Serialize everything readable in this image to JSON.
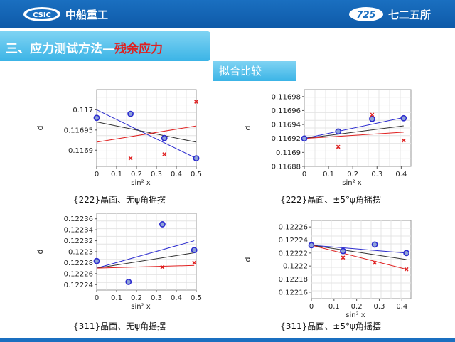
{
  "header": {
    "left_logo_text": "CSIC",
    "left_brand": "中船重工",
    "right_logo_text": "725",
    "right_brand": "七二五所"
  },
  "section": {
    "title_prefix": "三、应力测试方法—",
    "title_accent": "残余应力"
  },
  "compare_label": "拟合比较",
  "colors": {
    "header_blue": "#1a6fc0",
    "accent_red": "#e02020",
    "fit_blue": "#2c2ccf",
    "fit_red": "#e02020"
  },
  "chart_data": [
    {
      "type": "scatter",
      "caption": "{222}晶面、无ψ角摇摆",
      "xlabel": "sin² x",
      "ylabel": "d",
      "xlim": [
        0,
        0.5
      ],
      "ylim": [
        0.11686,
        0.11705
      ],
      "xticks": [
        0,
        0.1,
        0.2,
        0.3,
        0.4,
        0.5
      ],
      "yticks": [
        0.1169,
        0.11695,
        0.117
      ],
      "ytick_labels": [
        "0.1169",
        "0.11695",
        "0.117"
      ],
      "series": [
        {
          "marker": "circle",
          "color": "#2c2ccf",
          "points": [
            [
              0.0,
              0.11698
            ],
            [
              0.17,
              0.11699
            ],
            [
              0.34,
              0.11693
            ],
            [
              0.5,
              0.11688
            ]
          ]
        },
        {
          "marker": "x",
          "color": "#e02020",
          "points": [
            [
              0.17,
              0.11688
            ],
            [
              0.34,
              0.11689
            ],
            [
              0.5,
              0.11702
            ]
          ]
        }
      ],
      "lines": [
        {
          "color": "#2c2ccf",
          "from": [
            0.0,
            0.117
          ],
          "to": [
            0.5,
            0.11688
          ]
        },
        {
          "color": "#333333",
          "from": [
            0.0,
            0.11697
          ],
          "to": [
            0.5,
            0.11692
          ]
        },
        {
          "color": "#e02020",
          "from": [
            0.0,
            0.11692
          ],
          "to": [
            0.5,
            0.11696
          ]
        }
      ],
      "grid": true
    },
    {
      "type": "scatter",
      "caption": "{222}晶面、±5°ψ角摇摆",
      "xlabel": "sin² x",
      "ylabel": "d",
      "xlim": [
        0,
        0.44
      ],
      "ylim": [
        0.11688,
        0.11699
      ],
      "xticks": [
        0,
        0.1,
        0.2,
        0.3,
        0.4
      ],
      "yticks": [
        0.11688,
        0.1169,
        0.11692,
        0.11694,
        0.11696,
        0.11698
      ],
      "ytick_labels": [
        "0.11688",
        "0.1169",
        "0.11692",
        "0.11694",
        "0.11696",
        "0.11698"
      ],
      "series": [
        {
          "marker": "circle",
          "color": "#2c2ccf",
          "points": [
            [
              0.0,
              0.11692
            ],
            [
              0.14,
              0.11693
            ],
            [
              0.28,
              0.116948
            ],
            [
              0.41,
              0.116949
            ]
          ]
        },
        {
          "marker": "x",
          "color": "#e02020",
          "points": [
            [
              0.14,
              0.116908
            ],
            [
              0.28,
              0.116954
            ],
            [
              0.41,
              0.116917
            ]
          ]
        }
      ],
      "lines": [
        {
          "color": "#2c2ccf",
          "from": [
            0.0,
            0.11692
          ],
          "to": [
            0.41,
            0.11695
          ]
        },
        {
          "color": "#333333",
          "from": [
            0.0,
            0.11692
          ],
          "to": [
            0.41,
            0.116938
          ]
        },
        {
          "color": "#e02020",
          "from": [
            0.0,
            0.11692
          ],
          "to": [
            0.41,
            0.116929
          ]
        }
      ],
      "grid": true
    },
    {
      "type": "scatter",
      "caption": "{311}晶面、无ψ角摇摆",
      "xlabel": "sin² x",
      "ylabel": "d",
      "xlim": [
        0,
        0.5
      ],
      "ylim": [
        0.12223,
        0.12237
      ],
      "xticks": [
        0,
        0.1,
        0.2,
        0.3,
        0.4,
        0.5
      ],
      "yticks": [
        0.12224,
        0.12226,
        0.12228,
        0.1223,
        0.12232,
        0.12234,
        0.12236
      ],
      "ytick_labels": [
        "0.12224",
        "0.12226",
        "0.12228",
        "0.1223",
        "0.12232",
        "0.12234",
        "0.12236"
      ],
      "series": [
        {
          "marker": "circle",
          "color": "#2c2ccf",
          "points": [
            [
              0.0,
              0.122283
            ],
            [
              0.16,
              0.122245
            ],
            [
              0.33,
              0.12235
            ],
            [
              0.49,
              0.122303
            ]
          ]
        },
        {
          "marker": "x",
          "color": "#e02020",
          "points": [
            [
              0.33,
              0.122272
            ],
            [
              0.49,
              0.12228
            ]
          ]
        }
      ],
      "lines": [
        {
          "color": "#2c2ccf",
          "from": [
            0.0,
            0.12227
          ],
          "to": [
            0.49,
            0.12232
          ]
        },
        {
          "color": "#333333",
          "from": [
            0.0,
            0.12227
          ],
          "to": [
            0.49,
            0.122298
          ]
        },
        {
          "color": "#e02020",
          "from": [
            0.0,
            0.12227
          ],
          "to": [
            0.49,
            0.122275
          ]
        }
      ],
      "grid": true
    },
    {
      "type": "scatter",
      "caption": "{311}晶面、±5°ψ角摇摆",
      "xlabel": "sin² x",
      "ylabel": "d",
      "xlim": [
        0,
        0.44
      ],
      "ylim": [
        0.12215,
        0.12227
      ],
      "xticks": [
        0,
        0.1,
        0.2,
        0.3,
        0.4
      ],
      "yticks": [
        0.12216,
        0.12218,
        0.1222,
        0.12222,
        0.12224,
        0.12226
      ],
      "ytick_labels": [
        "0.12216",
        "0.12218",
        "0.1222",
        "0.12222",
        "0.12224",
        "0.12226"
      ],
      "series": [
        {
          "marker": "circle",
          "color": "#2c2ccf",
          "points": [
            [
              0.0,
              0.122232
            ],
            [
              0.14,
              0.122223
            ],
            [
              0.28,
              0.122233
            ],
            [
              0.42,
              0.12222
            ]
          ]
        },
        {
          "marker": "x",
          "color": "#e02020",
          "points": [
            [
              0.14,
              0.122213
            ],
            [
              0.28,
              0.122205
            ],
            [
              0.42,
              0.122195
            ]
          ]
        }
      ],
      "lines": [
        {
          "color": "#2c2ccf",
          "from": [
            0.0,
            0.122232
          ],
          "to": [
            0.42,
            0.12222
          ]
        },
        {
          "color": "#333333",
          "from": [
            0.0,
            0.122232
          ],
          "to": [
            0.42,
            0.12221
          ]
        },
        {
          "color": "#e02020",
          "from": [
            0.0,
            0.122232
          ],
          "to": [
            0.42,
            0.122195
          ]
        }
      ],
      "grid": true
    }
  ]
}
